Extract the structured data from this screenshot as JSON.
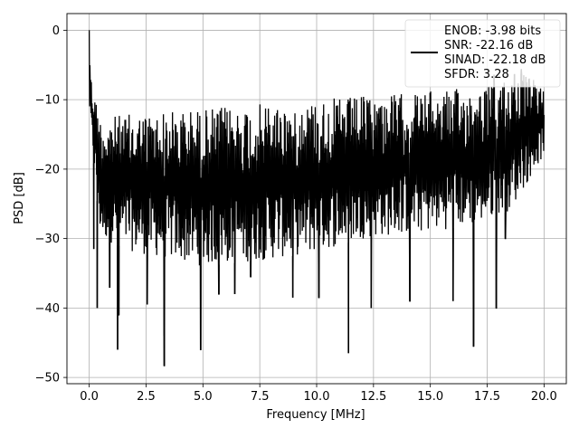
{
  "chart_data": {
    "type": "line",
    "title": "",
    "xlabel": "Frequency [MHz]",
    "ylabel": "PSD [dB]",
    "xlim": [
      -0.98,
      20.98
    ],
    "ylim": [
      -50.9,
      2.4
    ],
    "x_ticks": [
      0.0,
      2.5,
      5.0,
      7.5,
      10.0,
      12.5,
      15.0,
      17.5,
      20.0
    ],
    "x_tick_labels": [
      "0.0",
      "2.5",
      "5.0",
      "7.5",
      "10.0",
      "12.5",
      "15.0",
      "17.5",
      "20.0"
    ],
    "y_ticks": [
      0,
      -10,
      -20,
      -30,
      -40,
      -50
    ],
    "y_tick_labels": [
      "0",
      "−10",
      "−20",
      "−30",
      "−40",
      "−50"
    ],
    "grid": true,
    "legend_position": "top-right",
    "legend_lines": [
      "ENOB: -3.98 bits",
      "SNR: -22.16 dB",
      "SINAD: -22.18 dB",
      "SFDR: 3.28"
    ],
    "series": [
      {
        "color": "#000000",
        "x_range": [
          0.0,
          20.0
        ],
        "description": "dense noise-like power spectral density trace; envelope values in dB",
        "upper_envelope": [
          [
            0.0,
            0.0
          ],
          [
            0.05,
            -3.0
          ],
          [
            0.1,
            -7.5
          ],
          [
            0.5,
            -12.5
          ],
          [
            2.0,
            -12.0
          ],
          [
            4.0,
            -11.5
          ],
          [
            6.0,
            -11.0
          ],
          [
            8.0,
            -10.5
          ],
          [
            10.0,
            -10.0
          ],
          [
            12.0,
            -9.5
          ],
          [
            14.0,
            -9.0
          ],
          [
            16.0,
            -8.5
          ],
          [
            17.5,
            -8.0
          ],
          [
            18.5,
            -6.5
          ],
          [
            19.0,
            -6.0
          ],
          [
            20.0,
            -8.0
          ]
        ],
        "lower_envelope": [
          [
            0.0,
            -12.0
          ],
          [
            0.5,
            -30.0
          ],
          [
            2.0,
            -32.0
          ],
          [
            5.0,
            -34.0
          ],
          [
            8.0,
            -33.0
          ],
          [
            10.0,
            -32.0
          ],
          [
            12.0,
            -30.0
          ],
          [
            15.0,
            -29.0
          ],
          [
            17.0,
            -28.0
          ],
          [
            18.5,
            -26.0
          ],
          [
            20.0,
            -18.0
          ]
        ],
        "deep_dips": [
          [
            0.2,
            -31.5
          ],
          [
            0.35,
            -40.0
          ],
          [
            0.9,
            -37.0
          ],
          [
            1.3,
            -41.0
          ],
          [
            1.25,
            -46.0
          ],
          [
            2.55,
            -39.5
          ],
          [
            3.3,
            -44.0
          ],
          [
            3.3,
            -48.3
          ],
          [
            4.9,
            -46.0
          ],
          [
            5.7,
            -38.0
          ],
          [
            6.4,
            -38.0
          ],
          [
            7.1,
            -35.5
          ],
          [
            8.95,
            -38.5
          ],
          [
            10.1,
            -38.5
          ],
          [
            11.4,
            -46.5
          ],
          [
            12.4,
            -40.0
          ],
          [
            14.1,
            -39.0
          ],
          [
            16.0,
            -39.0
          ],
          [
            16.9,
            -45.5
          ],
          [
            17.9,
            -40.0
          ],
          [
            18.3,
            -30.0
          ]
        ],
        "peaks": [
          [
            0.0,
            0.0
          ],
          [
            17.8,
            -6.4
          ],
          [
            18.7,
            -6.5
          ],
          [
            19.0,
            -5.6
          ]
        ]
      }
    ]
  }
}
